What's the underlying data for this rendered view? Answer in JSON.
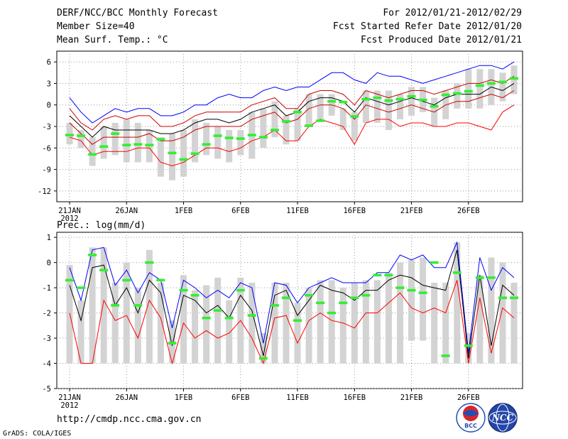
{
  "header": {
    "line1_left": "DERF/NCC/BCC Monthly Forecast",
    "line2_left": "Member Size=40",
    "line3_left": "Mean Surf. Temp.: °C",
    "line1_right": "For 2012/01/21-2012/02/29",
    "line2_right": "Fcst Started Refer Date 2012/01/20",
    "line3_right": "Fcst Produced Date 2012/01/21"
  },
  "footer": {
    "url": "http://cmdp.ncc.cma.gov.cn",
    "credit": "GrADS: COLA/IGES",
    "logo_bcc_text": "BCC",
    "logo_ncc_text": "NCC"
  },
  "colors": {
    "max_line": "#0000ff",
    "min_line": "#ff0000",
    "mean_line": "#000000",
    "spread_line": "#cc0000",
    "bar": "#d3d3d3",
    "observed": "#33ee33",
    "frame": "#000000",
    "grid": "#999999"
  },
  "chart_data": [
    {
      "type": "bar",
      "title": "Mean Surf. Temp.: °C",
      "x_labels": [
        "21JAN",
        "26JAN",
        "1FEB",
        "6FEB",
        "11FEB",
        "16FEB",
        "21FEB",
        "26FEB"
      ],
      "x_year": "2012",
      "days": 40,
      "ylim": [
        -13.5,
        7.5
      ],
      "yticks": [
        6,
        3,
        0,
        -3,
        -6,
        -9,
        -12
      ],
      "series": [
        {
          "name": "max",
          "values": [
            1.0,
            -1.0,
            -2.5,
            -1.5,
            -0.5,
            -1.0,
            -0.5,
            -0.5,
            -1.5,
            -1.5,
            -1.0,
            0.0,
            0.0,
            1.0,
            1.5,
            1.0,
            1.0,
            2.0,
            2.5,
            2.0,
            2.5,
            2.5,
            3.5,
            4.5,
            4.5,
            3.5,
            3.0,
            4.5,
            4.0,
            4.0,
            3.5,
            3.0,
            3.5,
            4.0,
            4.5,
            5.0,
            5.5,
            5.5,
            5.0,
            6.0
          ]
        },
        {
          "name": "upper",
          "values": [
            -0.5,
            -2.5,
            -3.5,
            -2.0,
            -1.5,
            -2.0,
            -1.5,
            -1.5,
            -3.0,
            -3.0,
            -2.5,
            -1.5,
            -1.0,
            -1.0,
            -1.0,
            -1.0,
            0.0,
            0.5,
            1.0,
            -0.5,
            -0.5,
            1.5,
            2.0,
            2.0,
            1.5,
            0.0,
            2.0,
            1.5,
            1.0,
            1.5,
            2.0,
            2.0,
            1.5,
            2.0,
            2.5,
            3.0,
            3.0,
            3.5,
            3.0,
            4.0
          ]
        },
        {
          "name": "mean",
          "values": [
            -1.5,
            -3.0,
            -4.5,
            -3.0,
            -3.5,
            -3.5,
            -3.5,
            -3.5,
            -4.0,
            -4.0,
            -3.5,
            -2.5,
            -2.0,
            -2.0,
            -2.5,
            -2.0,
            -1.0,
            -0.5,
            0.0,
            -1.5,
            -1.0,
            0.5,
            1.0,
            1.0,
            0.5,
            -1.0,
            1.0,
            0.5,
            0.0,
            0.5,
            1.0,
            0.5,
            0.0,
            1.0,
            1.5,
            1.5,
            1.5,
            2.5,
            2.0,
            3.0
          ]
        },
        {
          "name": "lower",
          "values": [
            -2.5,
            -4.0,
            -5.5,
            -4.5,
            -4.5,
            -4.5,
            -4.5,
            -4.0,
            -5.0,
            -5.0,
            -4.5,
            -3.5,
            -3.0,
            -3.0,
            -3.0,
            -3.0,
            -2.0,
            -1.5,
            -1.0,
            -2.5,
            -2.0,
            -0.5,
            0.0,
            0.0,
            -0.5,
            -2.0,
            0.0,
            -0.5,
            -1.0,
            -0.5,
            0.0,
            -0.5,
            -1.0,
            0.0,
            0.5,
            0.5,
            1.0,
            1.5,
            1.0,
            2.0
          ]
        },
        {
          "name": "min",
          "values": [
            -4.5,
            -5.0,
            -7.0,
            -6.5,
            -6.5,
            -6.5,
            -6.0,
            -6.0,
            -8.0,
            -8.5,
            -8.0,
            -7.0,
            -6.0,
            -6.0,
            -6.5,
            -6.0,
            -5.0,
            -4.5,
            -3.5,
            -5.0,
            -5.0,
            -3.0,
            -2.0,
            -2.5,
            -3.0,
            -5.5,
            -2.5,
            -2.0,
            -2.0,
            -3.0,
            -2.5,
            -2.5,
            -3.0,
            -3.0,
            -2.5,
            -2.5,
            -3.0,
            -3.5,
            -1.0,
            0.0
          ]
        },
        {
          "name": "bar_top",
          "values": [
            -2.5,
            -3.5,
            -4.5,
            -3.0,
            -2.5,
            -2.0,
            -2.5,
            -3.5,
            -4.5,
            -4.0,
            -3.5,
            -2.0,
            -2.5,
            -3.0,
            -3.5,
            -3.5,
            -1.0,
            -0.5,
            0.5,
            -1.5,
            -0.5,
            1.5,
            1.5,
            1.5,
            -0.5,
            -1.0,
            2.0,
            2.0,
            2.0,
            1.5,
            2.5,
            2.5,
            1.0,
            2.0,
            3.0,
            5.0,
            5.0,
            5.0,
            4.5,
            5.5
          ]
        },
        {
          "name": "bar_bottom",
          "values": [
            -5.5,
            -6.0,
            -8.5,
            -7.5,
            -7.0,
            -8.0,
            -8.0,
            -8.0,
            -10.0,
            -10.5,
            -10.0,
            -8.0,
            -7.0,
            -7.5,
            -8.0,
            -7.0,
            -7.5,
            -6.0,
            -4.5,
            -5.5,
            -5.0,
            -3.0,
            -2.0,
            -1.5,
            -3.5,
            -5.0,
            -2.5,
            -2.5,
            -3.5,
            -2.0,
            -1.5,
            -1.0,
            -3.0,
            -2.0,
            -0.5,
            -0.5,
            -0.5,
            0.0,
            0.5,
            1.5
          ]
        },
        {
          "name": "observed",
          "values": [
            -4.2,
            -4.3,
            -6.9,
            -5.8,
            -4.0,
            -5.6,
            -5.5,
            -5.6,
            -4.8,
            -6.7,
            -7.6,
            -6.8,
            -5.5,
            -4.3,
            -4.6,
            -4.7,
            -4.2,
            -4.5,
            -3.5,
            -2.3,
            -1.0,
            -2.9,
            -2.2,
            0.5,
            0.4,
            -1.6,
            0.8,
            1.0,
            0.6,
            0.8,
            1.2,
            0.7,
            -0.2,
            1.4,
            1.6,
            1.9,
            2.7,
            3.0,
            3.2,
            3.7
          ]
        }
      ]
    },
    {
      "type": "bar",
      "title": "Prec.: log(mm/d)",
      "x_labels": [
        "21JAN",
        "26JAN",
        "1FEB",
        "6FEB",
        "11FEB",
        "16FEB",
        "21FEB",
        "26FEB"
      ],
      "x_year": "2012",
      "days": 40,
      "ylim": [
        -5,
        1.2
      ],
      "yticks": [
        1,
        0,
        -1,
        -2,
        -3,
        -4,
        -5
      ],
      "series": [
        {
          "name": "max",
          "values": [
            -0.2,
            -1.5,
            0.5,
            0.6,
            -0.9,
            -0.3,
            -1.2,
            -0.4,
            -0.7,
            -2.6,
            -0.7,
            -1.0,
            -1.4,
            -1.1,
            -1.4,
            -0.8,
            -1.0,
            -3.2,
            -0.8,
            -0.9,
            -1.6,
            -1.0,
            -0.8,
            -0.6,
            -0.8,
            -0.8,
            -0.8,
            -0.4,
            -0.4,
            0.3,
            0.1,
            0.3,
            -0.2,
            -0.2,
            0.8,
            -3.6,
            0.2,
            -1.1,
            -0.2,
            -0.6
          ]
        },
        {
          "name": "mean",
          "values": [
            -0.9,
            -2.3,
            -0.2,
            -0.1,
            -1.7,
            -1.0,
            -2.0,
            -0.7,
            -1.2,
            -3.3,
            -1.3,
            -1.5,
            -2.0,
            -1.7,
            -2.2,
            -1.3,
            -1.9,
            -3.7,
            -1.3,
            -1.1,
            -2.1,
            -1.5,
            -0.9,
            -1.1,
            -1.2,
            -1.5,
            -1.1,
            -1.1,
            -0.7,
            -0.5,
            -0.6,
            -0.9,
            -1.0,
            -1.1,
            0.5,
            -3.8,
            -0.5,
            -3.3,
            -0.9,
            -1.3
          ]
        },
        {
          "name": "min",
          "values": [
            -2.0,
            -4.0,
            -4.0,
            -1.5,
            -2.3,
            -2.1,
            -3.0,
            -1.5,
            -2.2,
            -4.0,
            -2.4,
            -3.0,
            -2.7,
            -3.0,
            -2.8,
            -2.3,
            -3.0,
            -4.0,
            -2.2,
            -2.1,
            -3.2,
            -2.3,
            -2.0,
            -2.3,
            -2.4,
            -2.6,
            -2.0,
            -2.0,
            -1.6,
            -1.2,
            -1.8,
            -2.0,
            -1.8,
            -2.0,
            -0.7,
            -4.0,
            -1.4,
            -3.6,
            -1.8,
            -2.2
          ]
        },
        {
          "name": "bar_top",
          "values": [
            -0.1,
            -1.5,
            0.6,
            0.6,
            -0.8,
            0.0,
            -1.0,
            0.5,
            -0.8,
            -2.3,
            -0.5,
            -1.1,
            -0.9,
            -0.6,
            -1.5,
            -0.6,
            -0.8,
            -2.8,
            -0.8,
            -0.8,
            -1.6,
            -1.0,
            -0.7,
            -0.7,
            -1.0,
            -0.8,
            -0.7,
            -0.7,
            -0.4,
            0.0,
            0.1,
            0.2,
            -0.8,
            -0.8,
            0.8,
            -2.8,
            -0.5,
            0.2,
            0.0,
            -0.8
          ]
        },
        {
          "name": "bar_bottom",
          "values": [
            -4.0,
            -4.0,
            -4.0,
            -4.0,
            -4.0,
            -4.0,
            -4.0,
            -4.0,
            -4.0,
            -4.0,
            -4.0,
            -4.0,
            -4.0,
            -4.0,
            -4.0,
            -4.0,
            -4.0,
            -4.0,
            -4.0,
            -4.0,
            -4.0,
            -4.0,
            -4.0,
            -4.0,
            -4.0,
            -4.0,
            -4.0,
            -4.0,
            -4.0,
            -4.0,
            -3.1,
            -3.1,
            -4.0,
            -4.0,
            -4.0,
            -4.0,
            -4.0,
            -4.0,
            -4.0,
            -4.0
          ]
        },
        {
          "name": "observed",
          "values": [
            -0.7,
            -1.0,
            0.3,
            -0.3,
            -1.7,
            -0.7,
            -1.7,
            0.0,
            -0.7,
            -3.2,
            -1.1,
            -1.3,
            -2.2,
            -1.9,
            -2.2,
            -1.1,
            -2.1,
            -3.8,
            -1.7,
            -1.4,
            -2.3,
            -1.3,
            -1.6,
            -2.0,
            -1.6,
            -1.4,
            -1.3,
            -0.5,
            -0.5,
            -1.0,
            -1.1,
            -1.2,
            0.0,
            -3.7,
            -0.4,
            -3.3,
            -0.6,
            -0.6,
            -1.4,
            -1.4
          ]
        }
      ]
    }
  ]
}
